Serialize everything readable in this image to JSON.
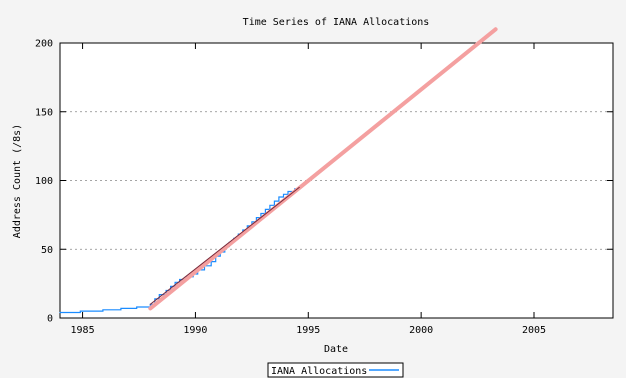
{
  "chart_data": {
    "type": "line",
    "title": "Time Series of IANA Allocations",
    "xlabel": "Date",
    "ylabel": "Address Count (/8s)",
    "xlim": [
      1984,
      2008.5
    ],
    "ylim": [
      0,
      200
    ],
    "xticks": [
      1985,
      1990,
      1995,
      2000,
      2005
    ],
    "yticks": [
      0,
      50,
      100,
      150,
      200
    ],
    "grid": {
      "y": true,
      "x": false,
      "style": "dotted"
    },
    "legend_position": "bottom-center",
    "series": [
      {
        "name": "IANA Allocations",
        "kind": "step",
        "color": "#1a8cff",
        "points": [
          [
            1984.0,
            4
          ],
          [
            1984.9,
            5
          ],
          [
            1985.9,
            6
          ],
          [
            1986.7,
            7
          ],
          [
            1987.4,
            8
          ],
          [
            1988.0,
            10
          ],
          [
            1988.2,
            14
          ],
          [
            1988.4,
            17
          ],
          [
            1988.7,
            20
          ],
          [
            1988.9,
            23
          ],
          [
            1989.1,
            26
          ],
          [
            1989.3,
            28
          ],
          [
            1989.6,
            30
          ],
          [
            1989.9,
            32
          ],
          [
            1990.1,
            35
          ],
          [
            1990.4,
            38
          ],
          [
            1990.7,
            41
          ],
          [
            1990.9,
            45
          ],
          [
            1991.1,
            48
          ],
          [
            1991.3,
            52
          ],
          [
            1991.5,
            55
          ],
          [
            1991.7,
            58
          ],
          [
            1991.9,
            61
          ],
          [
            1992.1,
            64
          ],
          [
            1992.3,
            67
          ],
          [
            1992.5,
            70
          ],
          [
            1992.7,
            73
          ],
          [
            1992.9,
            76
          ],
          [
            1993.1,
            79
          ],
          [
            1993.3,
            82
          ],
          [
            1993.5,
            85
          ],
          [
            1993.7,
            88
          ],
          [
            1993.9,
            90
          ],
          [
            1994.1,
            92
          ],
          [
            1994.4,
            94
          ],
          [
            1994.6,
            95
          ]
        ]
      },
      {
        "kind": "fit",
        "color": "#f4a0a0",
        "points": [
          [
            1988.0,
            7
          ],
          [
            2003.3,
            210
          ]
        ]
      },
      {
        "kind": "fit",
        "color": "#7a2a3a",
        "points": [
          [
            1988.0,
            10
          ],
          [
            1994.6,
            95
          ]
        ]
      }
    ]
  }
}
